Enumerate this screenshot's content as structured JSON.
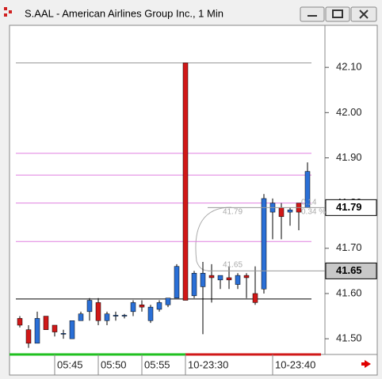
{
  "window": {
    "title": "S.AAL - American Airlines Group Inc., 1 Min"
  },
  "chart_data": {
    "type": "candlestick",
    "categories": [
      null,
      null,
      null,
      null,
      "05:45",
      null,
      null,
      null,
      null,
      "05:50",
      null,
      null,
      null,
      null,
      "05:55",
      null,
      null,
      null,
      null,
      "10-23:30",
      null,
      null,
      null,
      null,
      null,
      null,
      null,
      null,
      null,
      "10-23:40",
      null,
      null,
      null,
      null
    ],
    "open": [
      41.545,
      41.52,
      41.49,
      41.55,
      41.53,
      41.51,
      41.5,
      41.54,
      41.56,
      41.58,
      41.54,
      41.55,
      41.55,
      41.56,
      41.575,
      41.54,
      41.565,
      41.575,
      41.59,
      42.11,
      41.595,
      41.615,
      41.64,
      41.63,
      41.635,
      41.62,
      41.64,
      41.6,
      41.61,
      41.78,
      41.79,
      41.78,
      41.8,
      41.79
    ],
    "high": [
      41.55,
      41.53,
      41.56,
      41.55,
      41.53,
      41.52,
      41.54,
      41.56,
      41.59,
      41.59,
      41.56,
      41.56,
      41.555,
      41.585,
      41.585,
      41.575,
      41.585,
      41.59,
      41.665,
      42.11,
      41.65,
      41.67,
      41.665,
      41.64,
      41.66,
      41.645,
      41.645,
      41.66,
      41.82,
      41.81,
      41.8,
      41.79,
      41.8,
      41.89
    ],
    "low": [
      41.525,
      41.48,
      41.49,
      41.52,
      41.505,
      41.5,
      41.5,
      41.54,
      41.54,
      41.53,
      41.53,
      41.54,
      41.545,
      41.55,
      41.56,
      41.535,
      41.56,
      41.57,
      41.59,
      41.585,
      41.59,
      41.51,
      41.58,
      41.61,
      41.61,
      41.61,
      41.59,
      41.575,
      41.6,
      41.72,
      41.72,
      41.75,
      41.74,
      41.79
    ],
    "close": [
      41.53,
      41.49,
      41.545,
      41.52,
      41.515,
      41.512,
      41.54,
      41.555,
      41.585,
      41.54,
      41.555,
      41.552,
      41.552,
      41.58,
      41.57,
      41.57,
      41.58,
      41.59,
      41.66,
      41.585,
      41.645,
      41.645,
      41.635,
      41.64,
      41.63,
      41.64,
      41.635,
      41.58,
      41.81,
      41.8,
      41.77,
      41.785,
      41.78,
      41.87
    ],
    "up_color": "#2a6fd6",
    "down_color": "#d01818",
    "ylim": [
      41.467,
      42.193
    ],
    "yticks": [
      {
        "value": 42.1,
        "label": "42.10"
      },
      {
        "value": 42.0,
        "label": "42.00"
      },
      {
        "value": 41.9,
        "label": "41.90"
      },
      {
        "value": 41.8,
        "label": "41.80"
      },
      {
        "value": 41.7,
        "label": "41.70"
      },
      {
        "value": 41.6,
        "label": "41.60"
      },
      {
        "value": 41.5,
        "label": "41.50"
      }
    ],
    "levels": [
      {
        "value": 42.11,
        "color": "#999999"
      },
      {
        "value": 41.91,
        "color": "#e080e0"
      },
      {
        "value": 41.862,
        "color": "#e080e0"
      },
      {
        "value": 41.8,
        "color": "#e080e0"
      },
      {
        "value": 41.715,
        "color": "#e080e0"
      },
      {
        "value": 41.588,
        "color": "#000000"
      }
    ],
    "price_markers": [
      {
        "value": 41.79,
        "label": "41.79",
        "fill": "#ffffff"
      },
      {
        "value": 41.65,
        "label": "41.65",
        "fill": "#c8c8c8"
      }
    ],
    "annotations": [
      "41.79",
      "41.65",
      "0.14",
      "0.34 %"
    ]
  }
}
